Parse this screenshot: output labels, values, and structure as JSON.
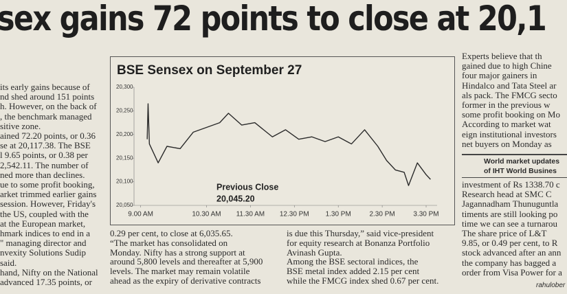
{
  "headline": "sex gains 72 points to close at 20,1",
  "left_column": {
    "lines": [
      "its early gains because of",
      "nd shed around 151 points",
      "h. However, on the back of",
      ", the benchmark managed",
      "sitive zone.",
      "ained 72.20 points, or 0.36",
      "se at 20,117.38. The BSE",
      "l 9.65 points, or 0.38 per",
      " 2,542.11. The number of",
      "ned more than declines.",
      "ue to some profit booking,",
      "arket trimmed earlier gains",
      " session. However, Friday's",
      "the US, coupled with the",
      " at the European market,",
      "hmark indices to end in a",
      "\" managing director and",
      "nvexity Solutions Sudip",
      "said.",
      "hand, Nifty on the National",
      "advanced 17.35 points, or"
    ]
  },
  "middle_column_1": {
    "lines": [
      "0.29 per cent, to close at 6,035.65.",
      "“The market has consolidated on",
      "Monday. Nifty has a strong support at",
      "around 5,800 levels and thereafter at 5,900",
      "levels. The market may remain volatile",
      "ahead as the expiry of derivative contracts"
    ]
  },
  "middle_column_2": {
    "lines": [
      "is due this Thursday,” said vice-president",
      "for equity research at Bonanza Portfolio",
      "Avinash Gupta.",
      "Among the BSE sectoral indices, the",
      "BSE metal index added 2.15 per cent",
      "while the FMCG index shed 0.67 per cent."
    ]
  },
  "right_column": {
    "lines_top": [
      "Experts believe that th",
      "gained due to high Chine",
      "four major gainers in",
      "Hindalco and Tata Steel ar",
      "als pack. The FMCG secto",
      "former in the previous w",
      "some profit booking on Mo",
      "According to market wat",
      "eign institutional investors",
      "net buyers on Monday as"
    ],
    "box": [
      "World market updates",
      "of IHT World Busines"
    ],
    "lines_bottom": [
      "investment of Rs 1338.70 c",
      "Research head at SMC C",
      "Jagannadham Thunuguntla",
      "timents are still looking po",
      "time we can see a turnarou",
      "The share price of L&T",
      "9.85, or 0.49 per cent, to R",
      "stock advanced after an ann",
      "the company has bagged a",
      "order from Visa Power for a"
    ],
    "credit": "rahulober"
  },
  "chart_data": {
    "type": "line",
    "title": "BSE Sensex on September 27",
    "annotation": [
      "Previous Close",
      "20,045.20"
    ],
    "x": [
      9.15,
      9.17,
      9.2,
      9.4,
      9.6,
      9.9,
      10.2,
      10.5,
      10.8,
      11.0,
      11.3,
      11.6,
      12.0,
      12.3,
      12.6,
      12.9,
      13.2,
      13.5,
      13.8,
      14.1,
      14.4,
      14.6,
      14.8,
      15.0,
      15.1,
      15.3,
      15.5,
      15.6
    ],
    "series": [
      {
        "name": "BSE Sensex",
        "color": "#2a2a2a",
        "values": [
          20190,
          20265,
          20180,
          20140,
          20175,
          20170,
          20205,
          20215,
          20225,
          20245,
          20220,
          20225,
          20195,
          20210,
          20190,
          20195,
          20185,
          20195,
          20180,
          20210,
          20175,
          20145,
          20125,
          20120,
          20092,
          20140,
          20115,
          20105
        ]
      }
    ],
    "xlim": [
      8.85,
      15.75
    ],
    "xticks": [
      {
        "value": 9,
        "label": "9.00 AM"
      },
      {
        "value": 10.5,
        "label": "10.30 AM"
      },
      {
        "value": 11.5,
        "label": "11.30 AM"
      },
      {
        "value": 12.5,
        "label": "12.30 PM"
      },
      {
        "value": 13.5,
        "label": "1.30 PM"
      },
      {
        "value": 14.5,
        "label": "2.30 PM"
      },
      {
        "value": 15.5,
        "label": "3.30 PM"
      }
    ],
    "ylim": [
      20050,
      20300
    ],
    "yticks": [
      {
        "value": 20050,
        "label": "20,050"
      },
      {
        "value": 20100,
        "label": "20,100"
      },
      {
        "value": 20150,
        "label": "20,150"
      },
      {
        "value": 20200,
        "label": "20,200"
      },
      {
        "value": 20250,
        "label": "20,250"
      },
      {
        "value": 20300,
        "label": "20,300"
      }
    ],
    "grid": false
  }
}
